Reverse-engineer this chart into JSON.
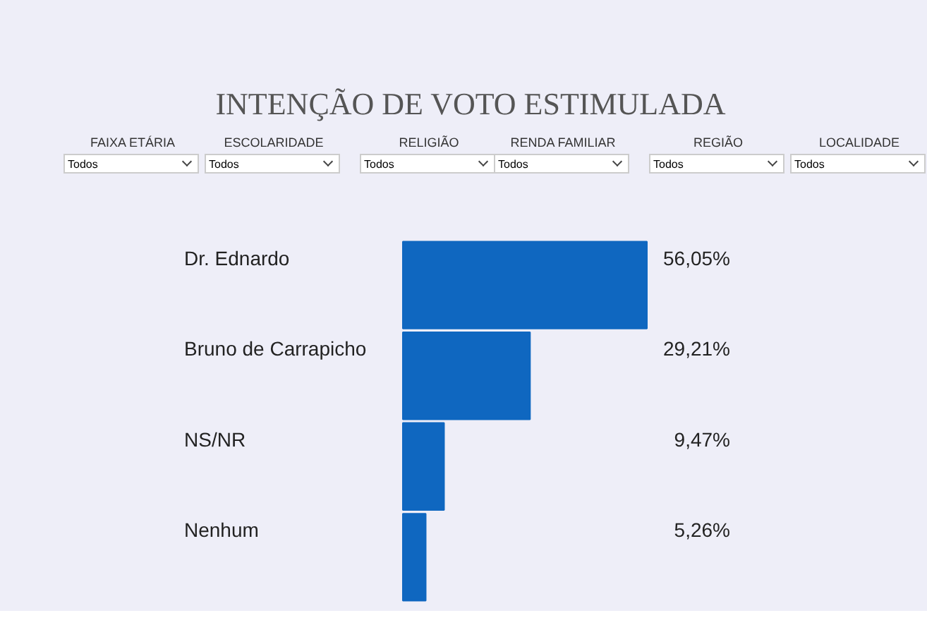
{
  "chart_data": {
    "type": "bar",
    "orientation": "horizontal",
    "title": "INTENÇÃO DE VOTO ESTIMULADA",
    "categories": [
      "Dr. Ednardo",
      "Bruno de Carrapicho",
      "NS/NR",
      "Nenhum"
    ],
    "values": [
      56.05,
      29.21,
      9.47,
      5.26
    ],
    "value_labels": [
      "56,05%",
      "29,21%",
      "9,47%",
      "5,26%"
    ],
    "color": "#0f67c0",
    "annotations": [
      "FAIXA ETÁRIA",
      "Todos",
      "ESCOLARIDADE",
      "Todos",
      "RELIGIÃO",
      "Todos",
      "RENDA FAMILIAR",
      "Todos",
      "REGIÃO",
      "Todos",
      "LOCALIDADE",
      "Todos"
    ]
  }
}
